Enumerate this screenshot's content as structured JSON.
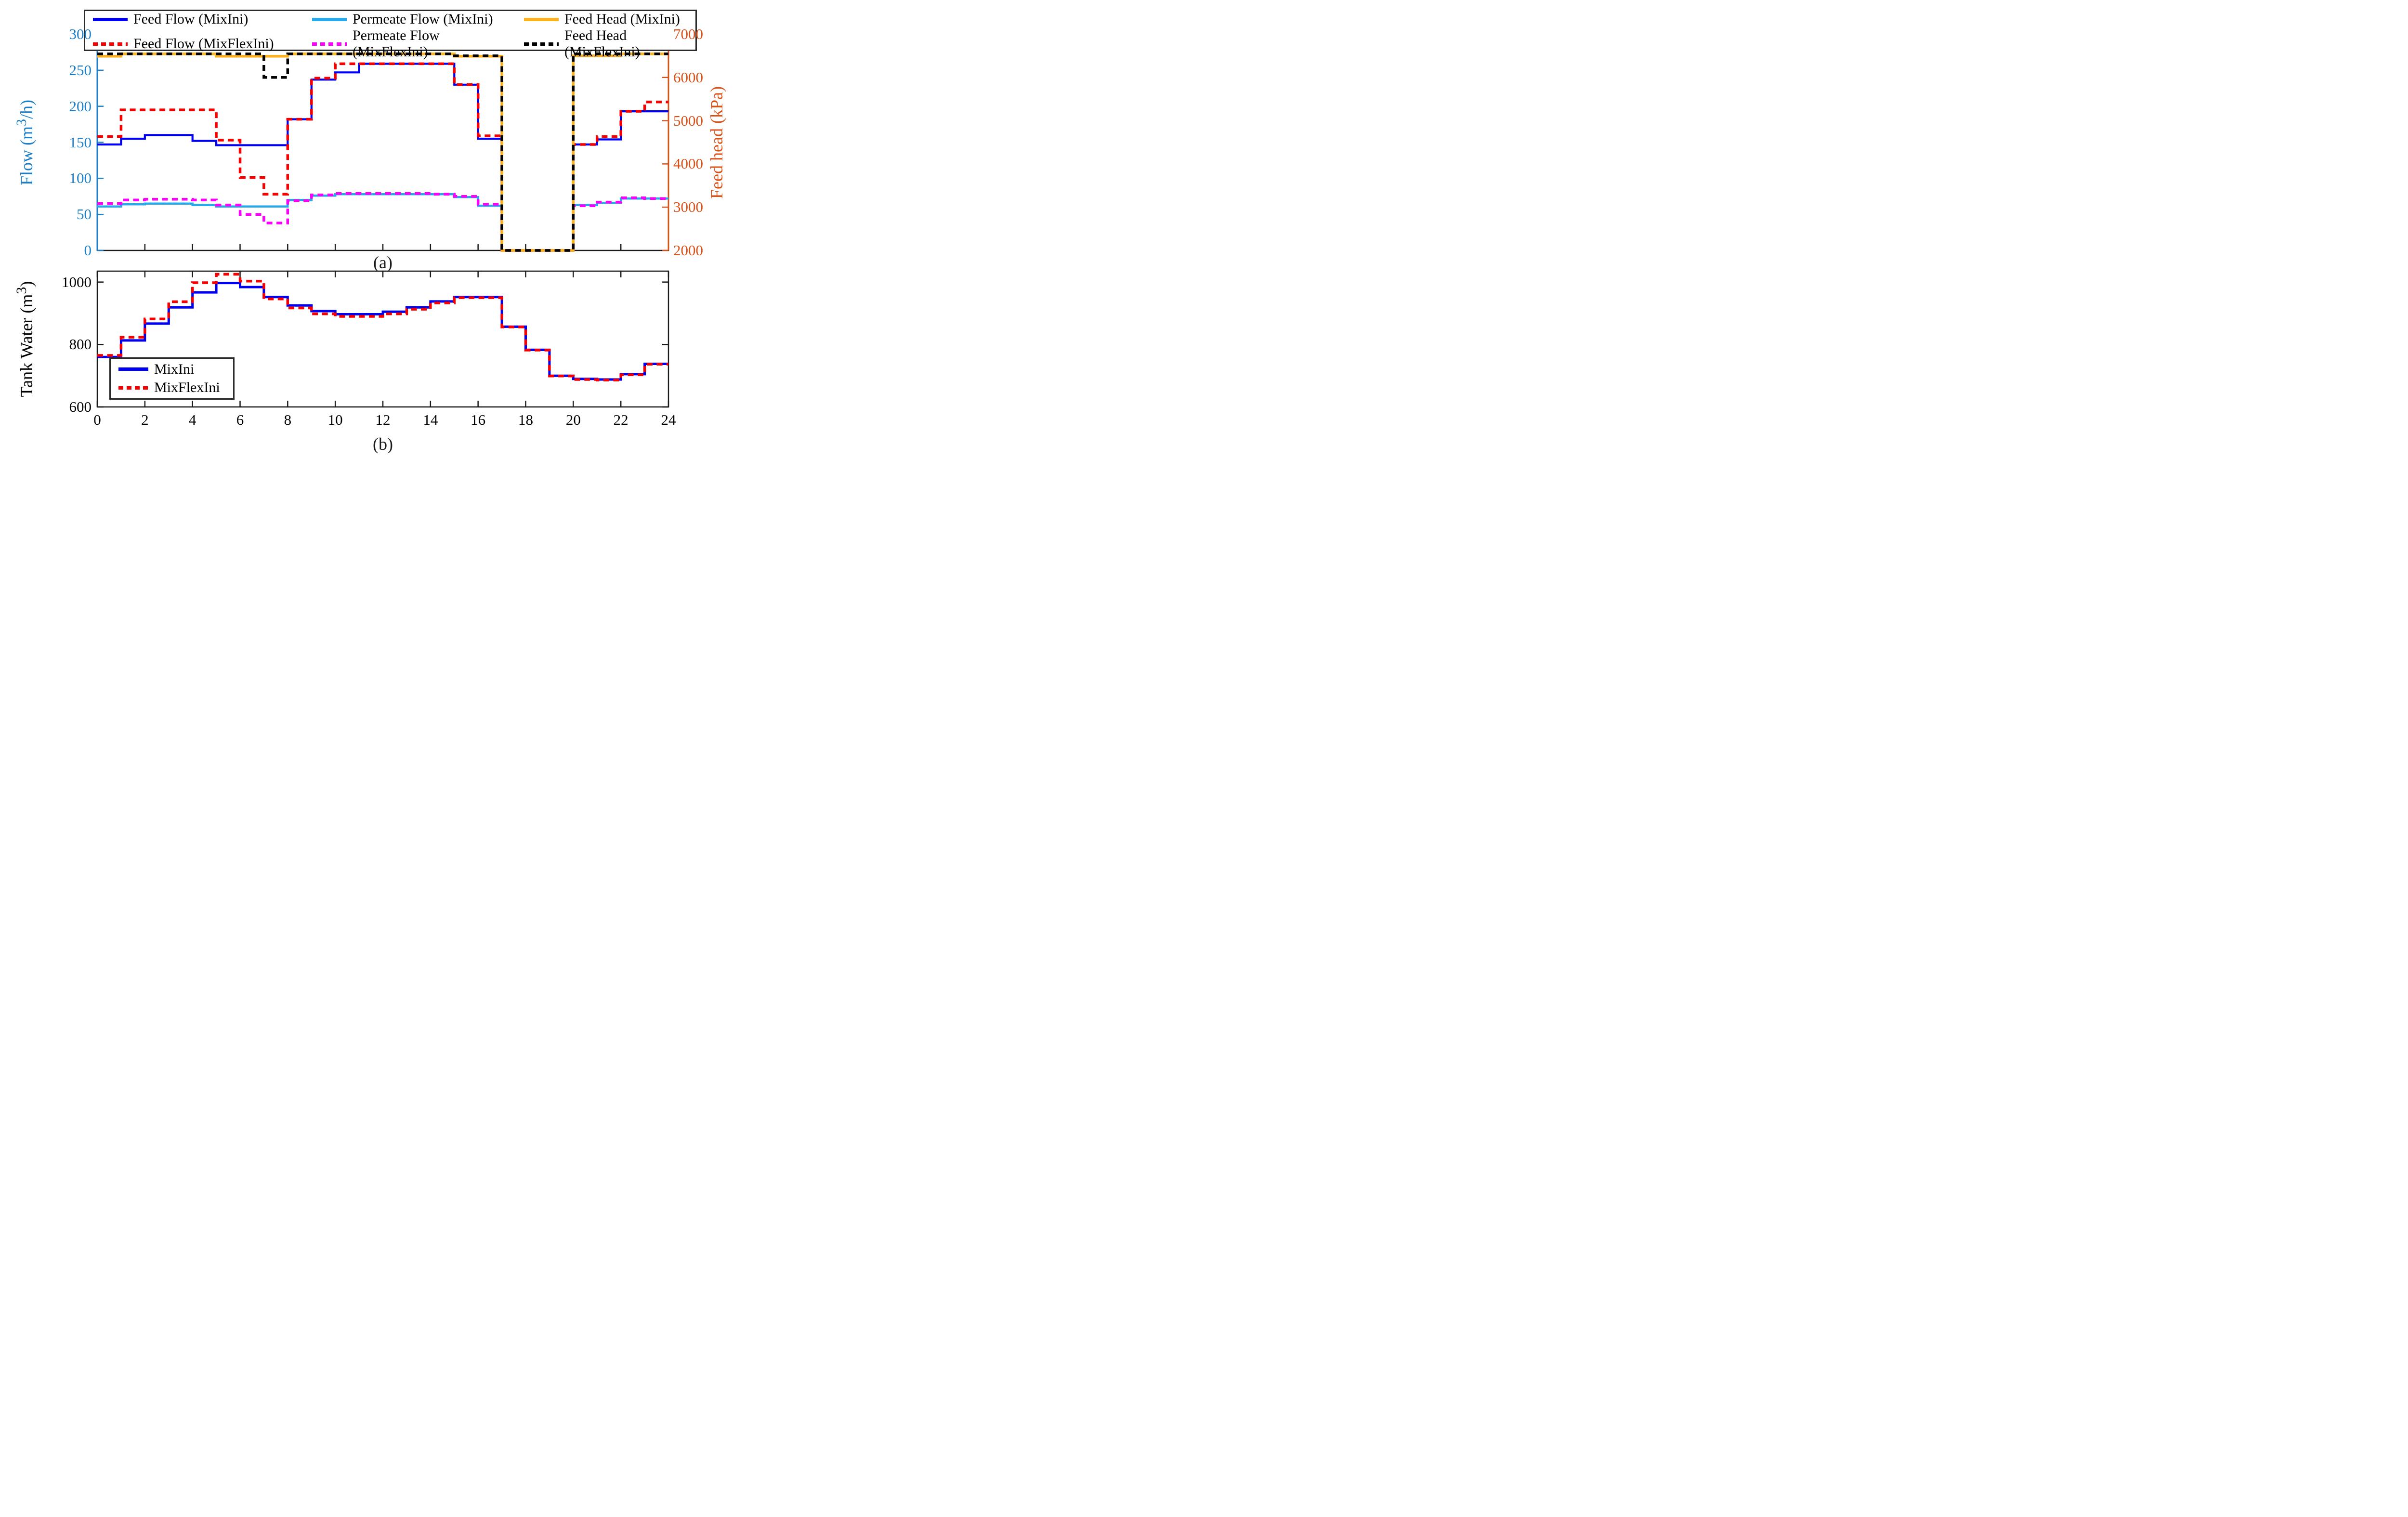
{
  "figure": {
    "panel_a_label": "(a)",
    "panel_b_label": "(b)",
    "background": "#ffffff"
  },
  "chart_data": [
    {
      "panel": "a",
      "type": "step",
      "title": "",
      "x_range": [
        0,
        24
      ],
      "x_ticks": [
        2,
        4,
        6,
        8,
        10,
        12,
        14,
        16,
        18,
        20,
        22
      ],
      "x_tick_labels_shown": false,
      "left_axis": {
        "label_prefix": "Flow (m",
        "label_sup": "3",
        "label_suffix": "/h)",
        "range": [
          0,
          300
        ],
        "ticks": [
          0,
          50,
          100,
          150,
          200,
          250,
          300
        ],
        "color": "#1b7ec6"
      },
      "right_axis": {
        "label": "Feed head (kPa)",
        "range": [
          2000,
          7000
        ],
        "ticks": [
          2000,
          3000,
          4000,
          5000,
          6000,
          7000
        ],
        "color": "#d95319"
      },
      "legend_position": "top",
      "legend_order": [
        "Feed Flow (MixIni)",
        "Permeate Flow (MixIni)",
        "Feed Head (MixIni)",
        "Feed Flow (MixFlexIni)",
        "Permeate Flow (MixFlexIni)",
        "Feed Head (MixFlexIni)"
      ],
      "series": [
        {
          "name": "Feed Flow (MixIni)",
          "axis": "left",
          "color": "#0000f0",
          "style": "solid",
          "width": 4.2,
          "values": [
            147,
            155,
            160,
            160,
            152,
            146,
            146,
            146,
            182,
            237,
            247,
            259,
            259,
            259,
            259,
            230,
            155,
            0,
            0,
            0,
            147,
            154,
            193,
            193
          ]
        },
        {
          "name": "Feed Flow (MixFlexIni)",
          "axis": "left",
          "color": "#f80000",
          "style": "dotted",
          "width": 5.5,
          "values": [
            158,
            195,
            195,
            195,
            195,
            153,
            101,
            78,
            182,
            239,
            259,
            259,
            259,
            259,
            259,
            230,
            159,
            0,
            0,
            0,
            147,
            158,
            193,
            206
          ]
        },
        {
          "name": "Permeate Flow (MixIni)",
          "axis": "left",
          "color": "#29a9ea",
          "style": "solid",
          "width": 4.5,
          "values": [
            61,
            64,
            65,
            65,
            63,
            61,
            61,
            61,
            70,
            76,
            78,
            78,
            78,
            78,
            78,
            74,
            62,
            0,
            0,
            0,
            63,
            66,
            72,
            72
          ]
        },
        {
          "name": "Permeate Flow (MixFlexIni)",
          "axis": "left",
          "color": "#fa00fa",
          "style": "dotted",
          "width": 5.5,
          "values": [
            65,
            70,
            71,
            71,
            70,
            63,
            50,
            38,
            69,
            77,
            79,
            79,
            79,
            79,
            78,
            75,
            64,
            0,
            0,
            0,
            62,
            67,
            73,
            72
          ]
        },
        {
          "name": "Feed Head (MixIni)",
          "axis": "right",
          "color": "#fcb223",
          "style": "solid",
          "width": 5.5,
          "values": [
            6490,
            6545,
            6545,
            6545,
            6545,
            6490,
            6490,
            6490,
            6545,
            6545,
            6545,
            6545,
            6545,
            6545,
            6545,
            6490,
            6490,
            2000,
            2000,
            2000,
            6500,
            6500,
            6545,
            6545
          ]
        },
        {
          "name": "Feed Head (MixFlexIni)",
          "axis": "right",
          "color": "#000000",
          "style": "dotted",
          "width": 5.5,
          "values": [
            6545,
            6545,
            6545,
            6545,
            6545,
            6545,
            6545,
            6000,
            6545,
            6545,
            6545,
            6545,
            6545,
            6545,
            6545,
            6500,
            6500,
            2000,
            2000,
            2000,
            6545,
            6545,
            6545,
            6545
          ]
        }
      ]
    },
    {
      "panel": "b",
      "type": "step",
      "title": "",
      "x_range": [
        0,
        24
      ],
      "x_ticks": [
        0,
        2,
        4,
        6,
        8,
        10,
        12,
        14,
        16,
        18,
        20,
        22,
        24
      ],
      "x_tick_labels_shown": true,
      "left_axis": {
        "label_prefix": "Tank Water (m",
        "label_sup": "3",
        "label_suffix": ")",
        "range": [
          600,
          1035
        ],
        "ticks": [
          600,
          800,
          1000
        ],
        "color": "#000000"
      },
      "legend_position": "bottom-left",
      "legend_order": [
        "MixIni",
        "MixFlexIni"
      ],
      "series": [
        {
          "name": "MixIni",
          "axis": "left",
          "color": "#0000f0",
          "style": "solid",
          "width": 5,
          "values": [
            760,
            813,
            867,
            919,
            967,
            997,
            984,
            952,
            925,
            907,
            897,
            897,
            905,
            919,
            938,
            952,
            952,
            857,
            783,
            700,
            690,
            688,
            705,
            738
          ]
        },
        {
          "name": "MixFlexIni",
          "axis": "left",
          "color": "#f80000",
          "style": "dotted",
          "width": 5.5,
          "values": [
            765,
            823,
            882,
            937,
            998,
            1025,
            1003,
            946,
            917,
            898,
            890,
            890,
            898,
            913,
            933,
            950,
            950,
            856,
            782,
            699,
            688,
            686,
            703,
            737
          ]
        }
      ]
    }
  ]
}
